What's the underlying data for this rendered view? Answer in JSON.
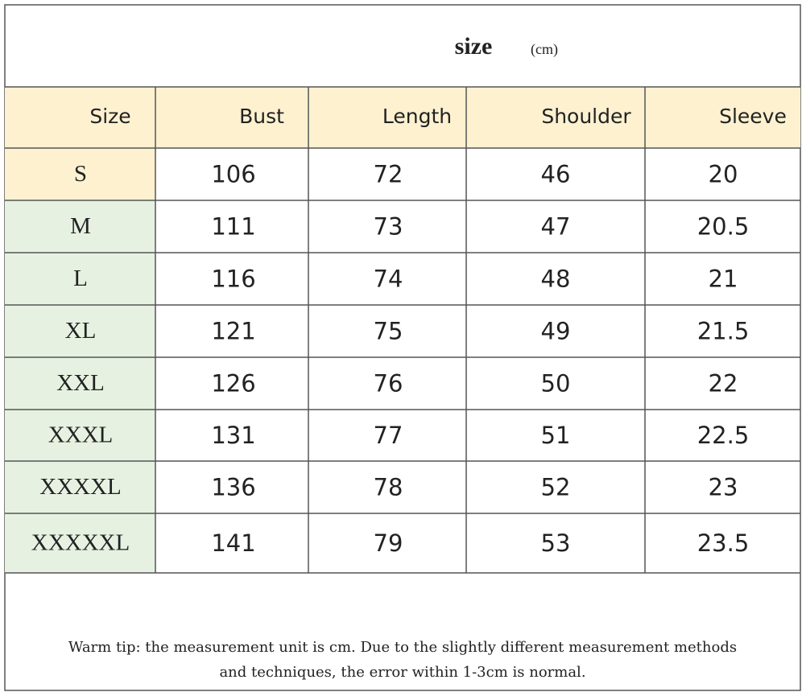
{
  "header": {
    "title": "size",
    "unit": "(cm)"
  },
  "table": {
    "columns": [
      "Size",
      "Bust",
      "Length",
      "Shoulder",
      "Sleeve"
    ],
    "rows": [
      [
        "S",
        106,
        72,
        46,
        20
      ],
      [
        "M",
        111,
        73,
        47,
        20.5
      ],
      [
        "L",
        116,
        74,
        48,
        21
      ],
      [
        "XL",
        121,
        75,
        49,
        21.5
      ],
      [
        "XXL",
        126,
        76,
        50,
        22
      ],
      [
        "XXXL",
        131,
        77,
        51,
        22.5
      ],
      [
        "XXXXL",
        136,
        78,
        52,
        23
      ],
      [
        "XXXXXL",
        141,
        79,
        53,
        23.5
      ]
    ]
  },
  "footer": {
    "lines": [
      "Warm tip: the measurement unit is cm. Due to the slightly different measurement methods",
      "and techniques, the error within 1-3cm is normal."
    ]
  }
}
